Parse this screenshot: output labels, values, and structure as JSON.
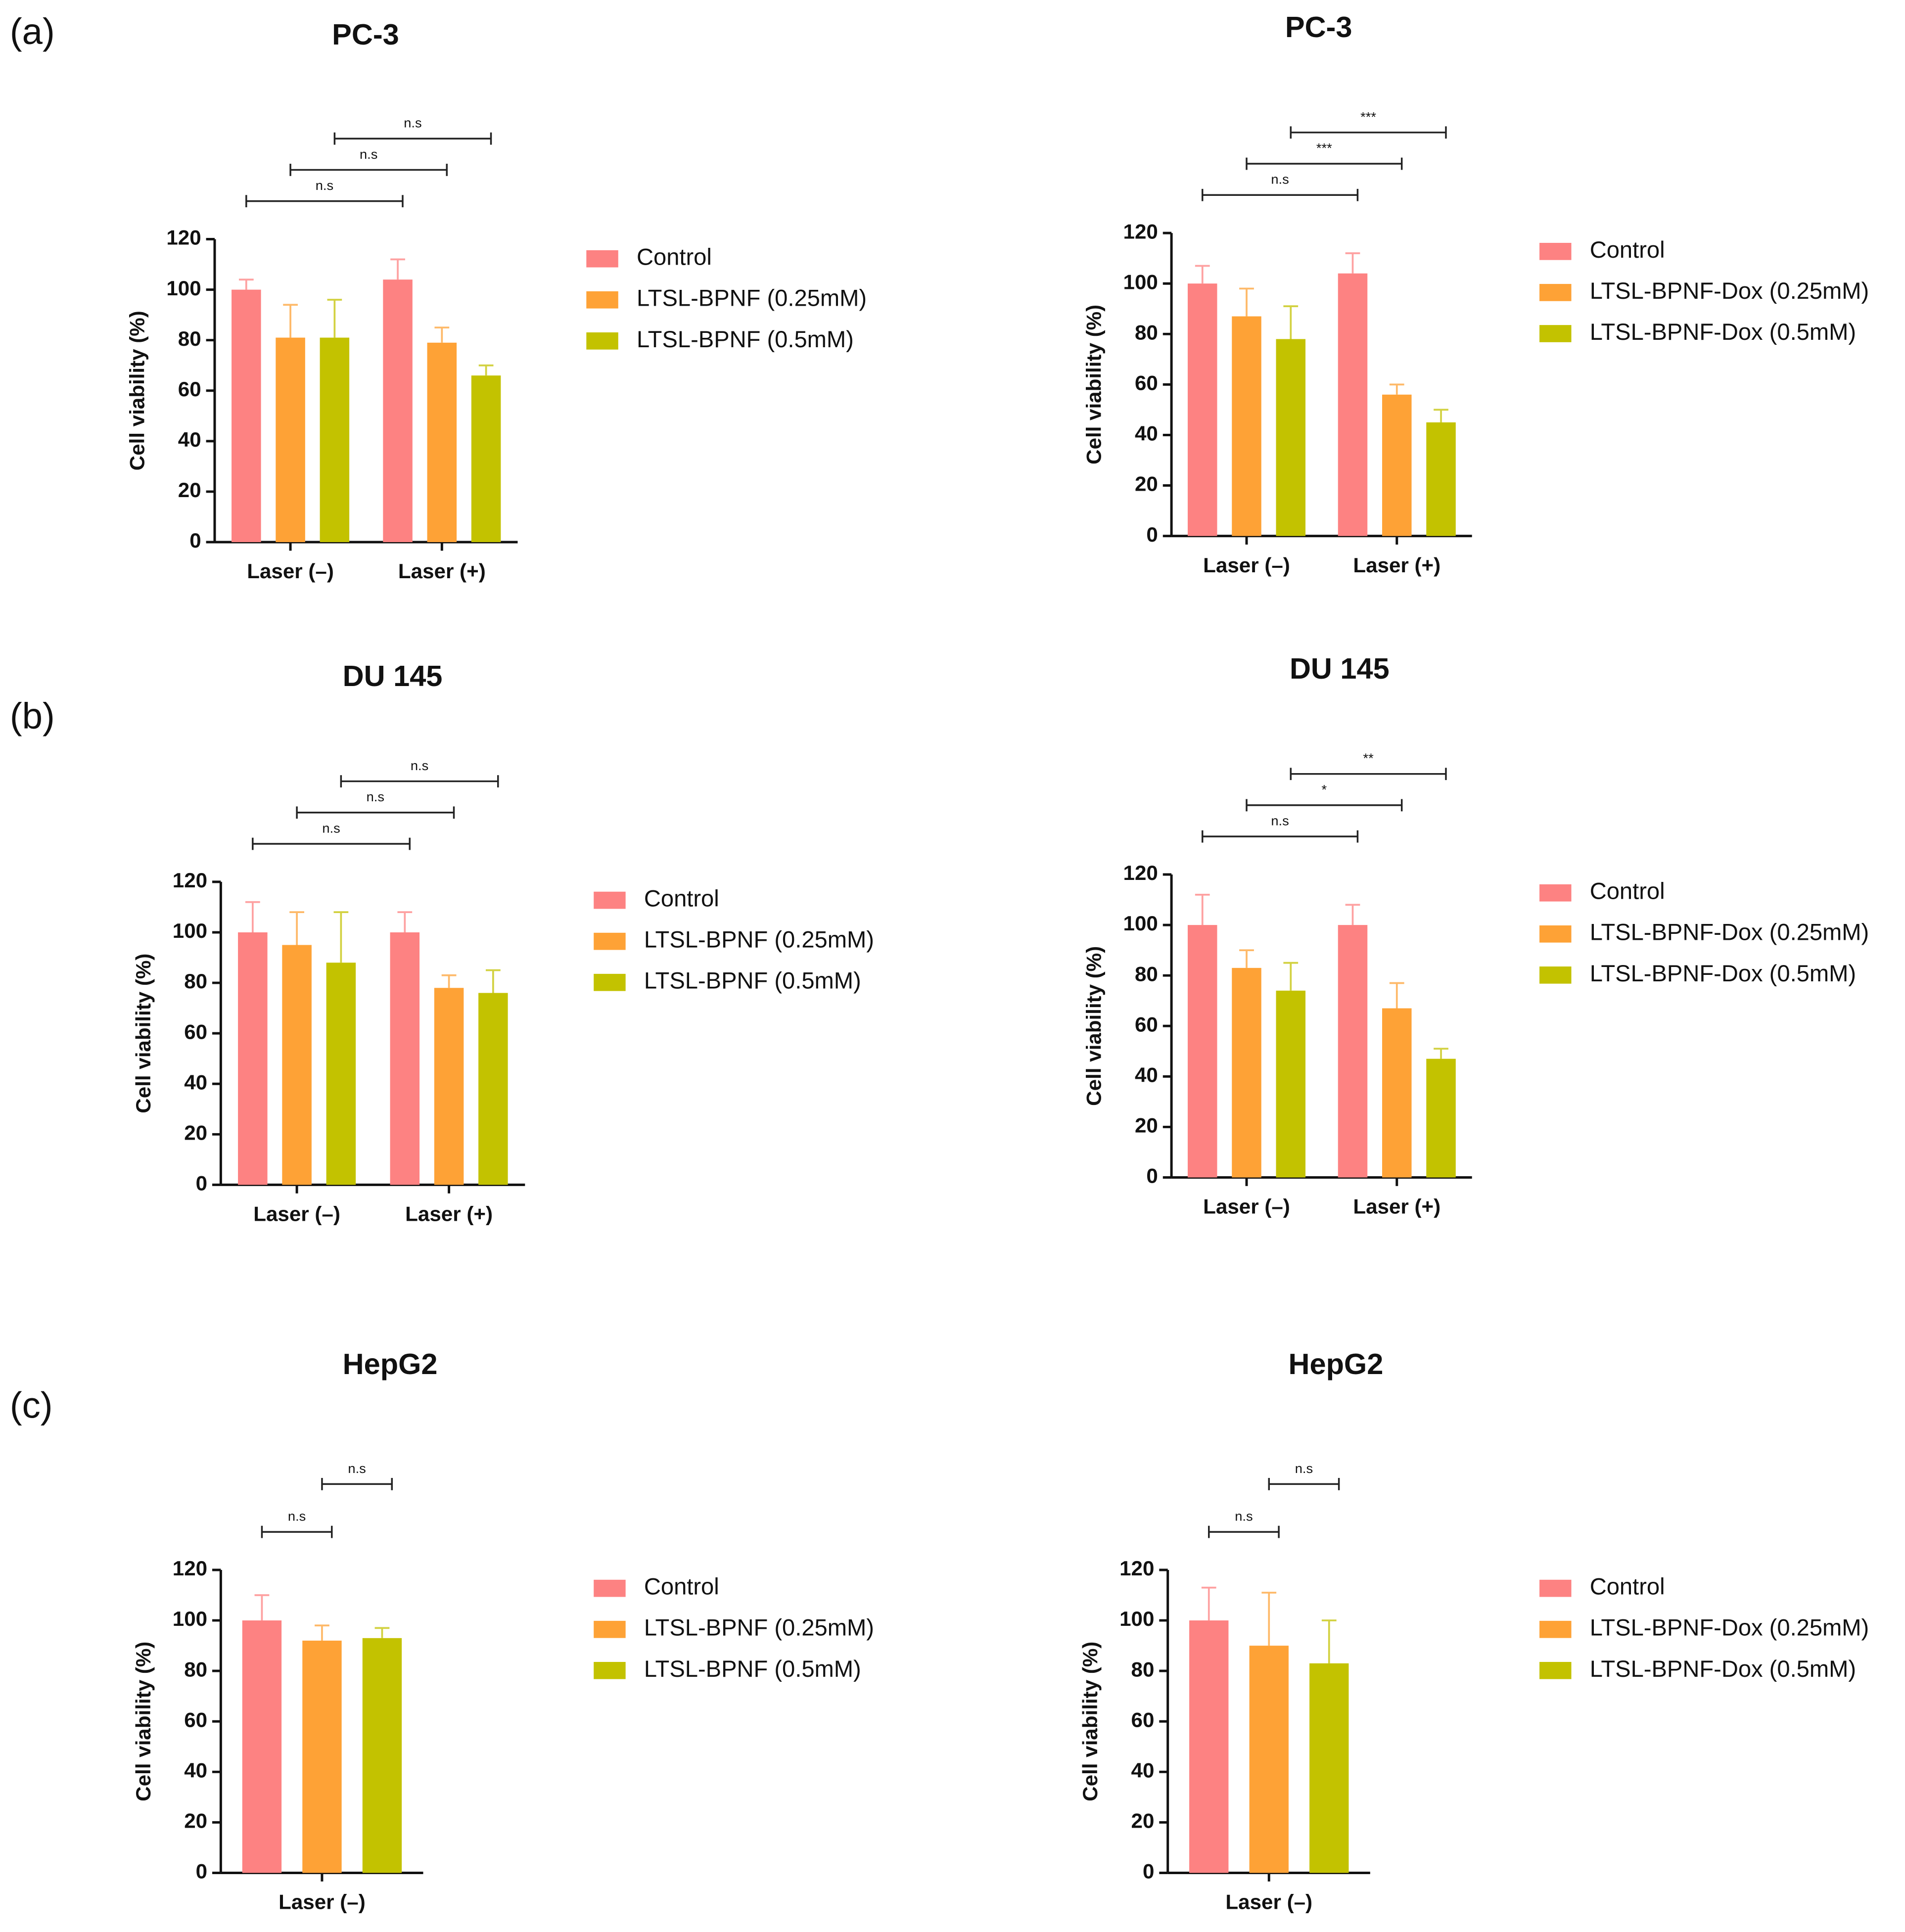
{
  "panel_labels": [
    "(a)",
    "(b)",
    "(c)"
  ],
  "chart_data": [
    {
      "type": "bar",
      "title": "PC-3",
      "y_label": "Cell viability (%)",
      "categories": [
        "Laser (–)",
        "Laser (+)"
      ],
      "series": [
        {
          "name": "Control",
          "color": "#fd8282",
          "values": [
            100,
            104
          ],
          "errors": [
            4,
            8
          ]
        },
        {
          "name": "LTSL-BPNF (0.25mM)",
          "color": "#fea236",
          "values": [
            81,
            79
          ],
          "errors": [
            13,
            6
          ]
        },
        {
          "name": "LTSL-BPNF (0.5mM)",
          "color": "#c3c200",
          "values": [
            81,
            66
          ],
          "errors": [
            15,
            4
          ]
        }
      ],
      "annotations": [
        {
          "text": "n.s"
        },
        {
          "text": "n.s"
        },
        {
          "text": "n.s"
        }
      ],
      "ylim": [
        0,
        120
      ],
      "yticks": [
        0,
        20,
        40,
        60,
        80,
        100,
        120
      ]
    },
    {
      "type": "bar",
      "title": "PC-3",
      "y_label": "Cell viability (%)",
      "categories": [
        "Laser (–)",
        "Laser (+)"
      ],
      "series": [
        {
          "name": "Control",
          "color": "#fd8282",
          "values": [
            100,
            104
          ],
          "errors": [
            7,
            8
          ]
        },
        {
          "name": "LTSL-BPNF-Dox (0.25mM)",
          "color": "#fea236",
          "values": [
            87,
            56
          ],
          "errors": [
            11,
            4
          ]
        },
        {
          "name": "LTSL-BPNF-Dox (0.5mM)",
          "color": "#c3c200",
          "values": [
            78,
            45
          ],
          "errors": [
            13,
            5
          ]
        }
      ],
      "annotations": [
        {
          "text": "n.s"
        },
        {
          "text": "***"
        },
        {
          "text": "***"
        }
      ],
      "ylim": [
        0,
        120
      ],
      "yticks": [
        0,
        20,
        40,
        60,
        80,
        100,
        120
      ]
    },
    {
      "type": "bar",
      "title": "DU 145",
      "y_label": "Cell viability (%)",
      "categories": [
        "Laser (–)",
        "Laser (+)"
      ],
      "series": [
        {
          "name": "Control",
          "color": "#fd8282",
          "values": [
            100,
            100
          ],
          "errors": [
            12,
            8
          ]
        },
        {
          "name": "LTSL-BPNF (0.25mM)",
          "color": "#fea236",
          "values": [
            95,
            78
          ],
          "errors": [
            13,
            5
          ]
        },
        {
          "name": "LTSL-BPNF (0.5mM)",
          "color": "#c3c200",
          "values": [
            88,
            76
          ],
          "errors": [
            20,
            9
          ]
        }
      ],
      "annotations": [
        {
          "text": "n.s"
        },
        {
          "text": "n.s"
        },
        {
          "text": "n.s"
        }
      ],
      "ylim": [
        0,
        120
      ],
      "yticks": [
        0,
        20,
        40,
        60,
        80,
        100,
        120
      ]
    },
    {
      "type": "bar",
      "title": "DU 145",
      "y_label": "Cell viability (%)",
      "categories": [
        "Laser (–)",
        "Laser (+)"
      ],
      "series": [
        {
          "name": "Control",
          "color": "#fd8282",
          "values": [
            100,
            100
          ],
          "errors": [
            12,
            8
          ]
        },
        {
          "name": "LTSL-BPNF-Dox (0.25mM)",
          "color": "#fea236",
          "values": [
            83,
            67
          ],
          "errors": [
            7,
            10
          ]
        },
        {
          "name": "LTSL-BPNF-Dox (0.5mM)",
          "color": "#c3c200",
          "values": [
            74,
            47
          ],
          "errors": [
            11,
            4
          ]
        }
      ],
      "annotations": [
        {
          "text": "n.s"
        },
        {
          "text": "*"
        },
        {
          "text": "**"
        }
      ],
      "ylim": [
        0,
        120
      ],
      "yticks": [
        0,
        20,
        40,
        60,
        80,
        100,
        120
      ]
    },
    {
      "type": "bar",
      "title": "HepG2",
      "y_label": "Cell viability (%)",
      "categories": [
        "Laser (–)"
      ],
      "series": [
        {
          "name": "Control",
          "color": "#fd8282",
          "values": [
            100
          ],
          "errors": [
            10
          ]
        },
        {
          "name": "LTSL-BPNF (0.25mM)",
          "color": "#fea236",
          "values": [
            92
          ],
          "errors": [
            6
          ]
        },
        {
          "name": "LTSL-BPNF (0.5mM)",
          "color": "#c3c200",
          "values": [
            93
          ],
          "errors": [
            4
          ]
        }
      ],
      "annotations": [
        {
          "text": "n.s"
        },
        {
          "text": "n.s"
        }
      ],
      "ylim": [
        0,
        120
      ],
      "yticks": [
        0,
        20,
        40,
        60,
        80,
        100,
        120
      ]
    },
    {
      "type": "bar",
      "title": "HepG2",
      "y_label": "Cell viability (%)",
      "categories": [
        "Laser (–)"
      ],
      "series": [
        {
          "name": "Control",
          "color": "#fd8282",
          "values": [
            100
          ],
          "errors": [
            13
          ]
        },
        {
          "name": "LTSL-BPNF-Dox (0.25mM)",
          "color": "#fea236",
          "values": [
            90
          ],
          "errors": [
            21
          ]
        },
        {
          "name": "LTSL-BPNF-Dox (0.5mM)",
          "color": "#c3c200",
          "values": [
            83
          ],
          "errors": [
            17
          ]
        }
      ],
      "annotations": [
        {
          "text": "n.s"
        },
        {
          "text": "n.s"
        }
      ],
      "ylim": [
        0,
        120
      ],
      "yticks": [
        0,
        20,
        40,
        60,
        80,
        100,
        120
      ]
    }
  ]
}
